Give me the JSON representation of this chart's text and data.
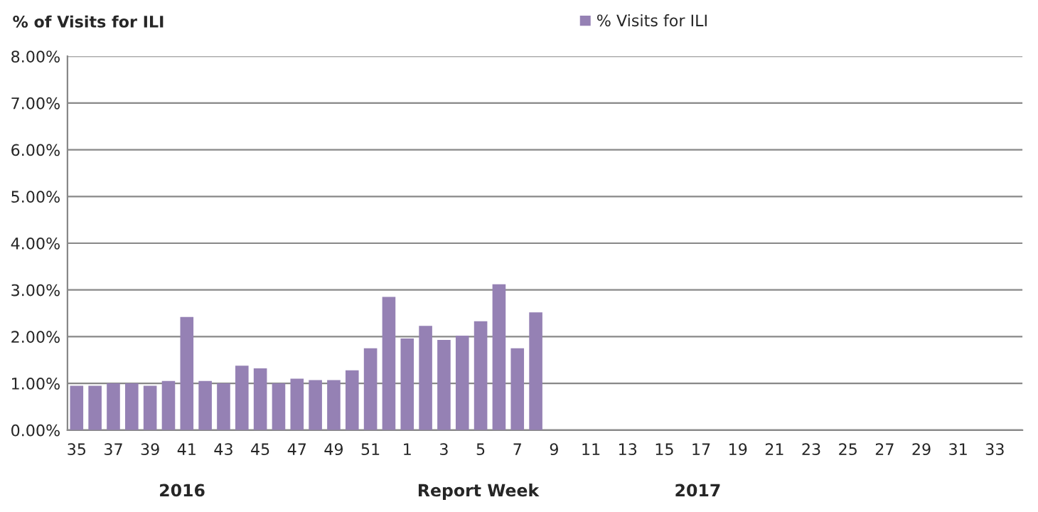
{
  "chart_data": {
    "type": "bar",
    "ylabel": "% of Visits for ILI",
    "xlabel": "Report Week",
    "annotations": [
      "2016",
      "2017"
    ],
    "categories": [
      "35",
      null,
      "37",
      null,
      "39",
      null,
      "41",
      null,
      "43",
      null,
      "45",
      null,
      "47",
      null,
      "49",
      null,
      "51",
      null,
      "1",
      null,
      "3",
      null,
      "5",
      null,
      "7",
      null,
      "9",
      null,
      "11",
      null,
      "13",
      null,
      "15",
      null,
      "17",
      null,
      "19",
      null,
      "21",
      null,
      "23",
      null,
      "25",
      null,
      "27",
      null,
      "29",
      null,
      "31",
      null,
      "33",
      null
    ],
    "series": [
      {
        "name": "% Visits for ILI",
        "color": "#9581b4",
        "values": [
          0.95,
          0.95,
          1.0,
          1.0,
          0.95,
          1.05,
          2.42,
          1.05,
          1.0,
          1.38,
          1.32,
          1.0,
          1.1,
          1.07,
          1.07,
          1.28,
          1.75,
          2.85,
          1.96,
          2.23,
          1.93,
          2.02,
          2.33,
          3.12,
          1.75,
          2.52,
          null,
          null,
          null,
          null,
          null,
          null,
          null,
          null,
          null,
          null,
          null,
          null,
          null,
          null,
          null,
          null,
          null,
          null,
          null,
          null,
          null,
          null,
          null,
          null,
          null,
          null
        ]
      }
    ],
    "ylim": [
      0,
      8
    ],
    "yticks": [
      {
        "value": 0,
        "label": "0.00%"
      },
      {
        "value": 1,
        "label": "1.00%"
      },
      {
        "value": 2,
        "label": "2.00%"
      },
      {
        "value": 3,
        "label": "3.00%"
      },
      {
        "value": 4,
        "label": "4.00%"
      },
      {
        "value": 5,
        "label": "5.00%"
      },
      {
        "value": 6,
        "label": "6.00%"
      },
      {
        "value": 7,
        "label": "7.00%"
      },
      {
        "value": 8,
        "label": "8.00%"
      }
    ],
    "grid": "y",
    "legend": "top"
  }
}
